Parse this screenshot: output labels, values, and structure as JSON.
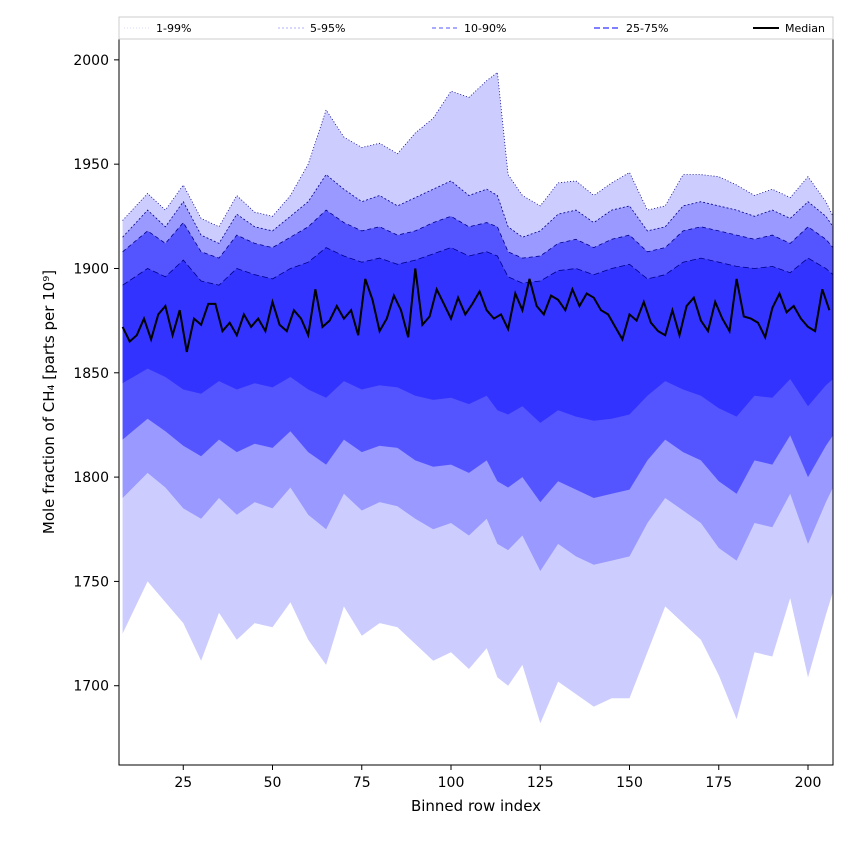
{
  "chart_data": {
    "type": "area",
    "xlabel": "Binned row index",
    "ylabel": "Mole fraction of CH₄ [parts per 10⁹]",
    "xlim": [
      7,
      207
    ],
    "ylim": [
      1662,
      2010
    ],
    "x_ticks": [
      25,
      50,
      75,
      100,
      125,
      150,
      175,
      200
    ],
    "y_ticks": [
      1700,
      1750,
      1800,
      1850,
      1900,
      1950,
      2000
    ],
    "x_tick_labels": [
      "25",
      "50",
      "75",
      "100",
      "125",
      "150",
      "175",
      "200"
    ],
    "y_tick_labels": [
      "1700",
      "1750",
      "1800",
      "1850",
      "1900",
      "1950",
      "2000"
    ],
    "legend_placement": "top, full width",
    "grid": false,
    "colors": {
      "band_1_99": "#ccccff",
      "band_5_95": "#9999ff",
      "band_10_90": "#5555ff",
      "band_25_75": "#3333ff",
      "band_edge": "#00008b",
      "median": "#000000"
    },
    "series": [
      {
        "name": "1-99%",
        "x": [
          8,
          15,
          20,
          25,
          30,
          35,
          40,
          45,
          50,
          55,
          60,
          65,
          70,
          75,
          80,
          85,
          90,
          95,
          100,
          105,
          110,
          113,
          116,
          120,
          125,
          130,
          135,
          140,
          145,
          150,
          155,
          160,
          165,
          170,
          175,
          180,
          185,
          190,
          195,
          200,
          205,
          207
        ],
        "upper": [
          1923,
          1936,
          1928,
          1940,
          1924,
          1920,
          1935,
          1927,
          1925,
          1935,
          1950,
          1976,
          1963,
          1958,
          1960,
          1955,
          1965,
          1972,
          1985,
          1982,
          1990,
          1994,
          1945,
          1935,
          1930,
          1941,
          1942,
          1935,
          1941,
          1946,
          1928,
          1930,
          1945,
          1945,
          1944,
          1940,
          1935,
          1938,
          1934,
          1944,
          1932,
          1925
        ],
        "lower": [
          1725,
          1750,
          1740,
          1730,
          1712,
          1735,
          1722,
          1730,
          1728,
          1740,
          1722,
          1710,
          1738,
          1724,
          1730,
          1728,
          1720,
          1712,
          1716,
          1708,
          1718,
          1704,
          1700,
          1710,
          1682,
          1702,
          1696,
          1690,
          1694,
          1694,
          1716,
          1738,
          1730,
          1722,
          1705,
          1684,
          1716,
          1714,
          1742,
          1704,
          1734,
          1745
        ]
      },
      {
        "name": "5-95%",
        "x": [
          8,
          15,
          20,
          25,
          30,
          35,
          40,
          45,
          50,
          55,
          60,
          65,
          70,
          75,
          80,
          85,
          90,
          95,
          100,
          105,
          110,
          113,
          116,
          120,
          125,
          130,
          135,
          140,
          145,
          150,
          155,
          160,
          165,
          170,
          175,
          180,
          185,
          190,
          195,
          200,
          205,
          207
        ],
        "upper": [
          1915,
          1928,
          1920,
          1932,
          1916,
          1912,
          1926,
          1920,
          1918,
          1925,
          1932,
          1945,
          1938,
          1932,
          1935,
          1930,
          1934,
          1938,
          1942,
          1935,
          1938,
          1935,
          1920,
          1915,
          1918,
          1926,
          1928,
          1922,
          1928,
          1930,
          1918,
          1920,
          1930,
          1932,
          1930,
          1928,
          1925,
          1928,
          1924,
          1932,
          1925,
          1920
        ],
        "lower": [
          1790,
          1802,
          1795,
          1785,
          1780,
          1790,
          1782,
          1788,
          1785,
          1795,
          1782,
          1775,
          1792,
          1784,
          1788,
          1786,
          1780,
          1775,
          1778,
          1772,
          1780,
          1768,
          1765,
          1772,
          1755,
          1768,
          1762,
          1758,
          1760,
          1762,
          1778,
          1790,
          1784,
          1778,
          1766,
          1760,
          1778,
          1776,
          1792,
          1768,
          1788,
          1795
        ]
      },
      {
        "name": "10-90%",
        "x": [
          8,
          15,
          20,
          25,
          30,
          35,
          40,
          45,
          50,
          55,
          60,
          65,
          70,
          75,
          80,
          85,
          90,
          95,
          100,
          105,
          110,
          113,
          116,
          120,
          125,
          130,
          135,
          140,
          145,
          150,
          155,
          160,
          165,
          170,
          175,
          180,
          185,
          190,
          195,
          200,
          205,
          207
        ],
        "upper": [
          1908,
          1918,
          1912,
          1922,
          1908,
          1905,
          1916,
          1912,
          1910,
          1915,
          1920,
          1928,
          1922,
          1918,
          1920,
          1916,
          1918,
          1922,
          1925,
          1920,
          1922,
          1920,
          1908,
          1905,
          1906,
          1912,
          1914,
          1910,
          1914,
          1916,
          1908,
          1910,
          1918,
          1920,
          1918,
          1916,
          1914,
          1916,
          1912,
          1920,
          1914,
          1910
        ],
        "lower": [
          1818,
          1828,
          1822,
          1815,
          1810,
          1818,
          1812,
          1816,
          1814,
          1822,
          1812,
          1806,
          1818,
          1812,
          1815,
          1814,
          1808,
          1805,
          1806,
          1802,
          1808,
          1798,
          1795,
          1800,
          1788,
          1798,
          1794,
          1790,
          1792,
          1794,
          1808,
          1818,
          1812,
          1808,
          1798,
          1792,
          1808,
          1806,
          1820,
          1800,
          1815,
          1820
        ]
      },
      {
        "name": "25-75%",
        "x": [
          8,
          15,
          20,
          25,
          30,
          35,
          40,
          45,
          50,
          55,
          60,
          65,
          70,
          75,
          80,
          85,
          90,
          95,
          100,
          105,
          110,
          113,
          116,
          120,
          125,
          130,
          135,
          140,
          145,
          150,
          155,
          160,
          165,
          170,
          175,
          180,
          185,
          190,
          195,
          200,
          205,
          207
        ],
        "upper": [
          1892,
          1900,
          1896,
          1904,
          1894,
          1892,
          1900,
          1897,
          1895,
          1900,
          1903,
          1910,
          1906,
          1903,
          1905,
          1902,
          1904,
          1907,
          1910,
          1906,
          1908,
          1906,
          1896,
          1893,
          1894,
          1899,
          1900,
          1897,
          1900,
          1902,
          1895,
          1897,
          1903,
          1905,
          1903,
          1901,
          1900,
          1901,
          1898,
          1905,
          1900,
          1897
        ],
        "lower": [
          1845,
          1852,
          1848,
          1842,
          1840,
          1846,
          1842,
          1845,
          1843,
          1848,
          1842,
          1838,
          1846,
          1842,
          1844,
          1843,
          1839,
          1837,
          1838,
          1835,
          1839,
          1832,
          1830,
          1834,
          1826,
          1832,
          1829,
          1827,
          1828,
          1830,
          1839,
          1846,
          1842,
          1839,
          1833,
          1829,
          1839,
          1838,
          1847,
          1834,
          1844,
          1847
        ]
      },
      {
        "name": "Median",
        "x": [
          8,
          10,
          12,
          14,
          16,
          18,
          20,
          22,
          24,
          26,
          28,
          30,
          32,
          34,
          36,
          38,
          40,
          42,
          44,
          46,
          48,
          50,
          52,
          54,
          56,
          58,
          60,
          62,
          64,
          66,
          68,
          70,
          72,
          74,
          76,
          78,
          80,
          82,
          84,
          86,
          88,
          90,
          92,
          94,
          96,
          98,
          100,
          102,
          104,
          106,
          108,
          110,
          112,
          114,
          116,
          118,
          120,
          122,
          124,
          126,
          128,
          130,
          132,
          134,
          136,
          138,
          140,
          142,
          144,
          146,
          148,
          150,
          152,
          154,
          156,
          158,
          160,
          162,
          164,
          166,
          168,
          170,
          172,
          174,
          176,
          178,
          180,
          182,
          184,
          186,
          188,
          190,
          192,
          194,
          196,
          198,
          200,
          202,
          204,
          206
        ],
        "values": [
          1872,
          1865,
          1868,
          1876,
          1866,
          1878,
          1882,
          1868,
          1880,
          1860,
          1876,
          1873,
          1883,
          1883,
          1870,
          1874,
          1868,
          1878,
          1872,
          1876,
          1870,
          1884,
          1873,
          1870,
          1880,
          1876,
          1868,
          1890,
          1872,
          1875,
          1882,
          1876,
          1880,
          1868,
          1895,
          1885,
          1870,
          1876,
          1887,
          1880,
          1867,
          1900,
          1873,
          1877,
          1890,
          1883,
          1876,
          1886,
          1878,
          1883,
          1889,
          1880,
          1876,
          1878,
          1871,
          1888,
          1880,
          1895,
          1882,
          1878,
          1887,
          1885,
          1880,
          1890,
          1882,
          1888,
          1886,
          1880,
          1878,
          1872,
          1866,
          1878,
          1875,
          1884,
          1874,
          1870,
          1868,
          1880,
          1868,
          1882,
          1886,
          1875,
          1870,
          1884,
          1876,
          1870,
          1895,
          1877,
          1876,
          1874,
          1867,
          1881,
          1888,
          1879,
          1882,
          1876,
          1872,
          1870,
          1890,
          1880
        ]
      }
    ],
    "legend": [
      {
        "label": "1-99%",
        "style": "dotted",
        "color": "#ccccff"
      },
      {
        "label": "5-95%",
        "style": "dotted",
        "color": "#9999ff"
      },
      {
        "label": "10-90%",
        "style": "dashed",
        "color": "#5555ff"
      },
      {
        "label": "25-75%",
        "style": "dashed",
        "color": "#3333ff"
      },
      {
        "label": "Median",
        "style": "solid",
        "color": "#000000"
      }
    ]
  }
}
